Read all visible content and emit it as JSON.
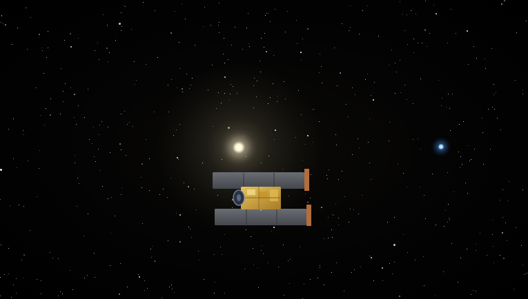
{
  "scene": {
    "colors": {
      "space": "#000000",
      "sun": "#fff8d9",
      "blue_star": "#8ec8ff",
      "spacecraft_body": "#d8a93a",
      "solar_panel": "#55575d",
      "panel_edge": "#b46d3d"
    },
    "objects": {
      "sun": "sun-icon",
      "blue_star": "blue-star-icon",
      "spacecraft": "spacecraft-icon"
    }
  }
}
